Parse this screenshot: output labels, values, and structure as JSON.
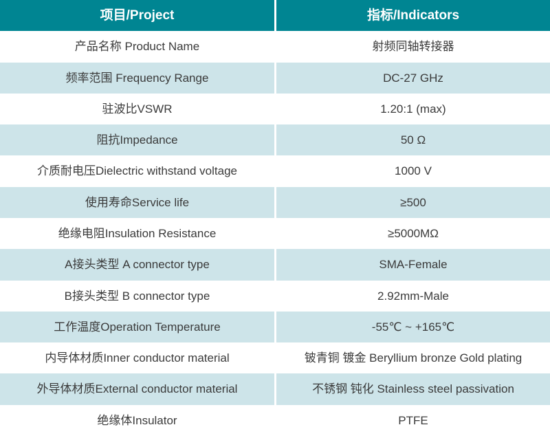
{
  "table": {
    "header": {
      "project": "项目/Project",
      "indicators": "指标/Indicators"
    },
    "rows": [
      {
        "project": "产品名称 Product Name",
        "indicator": "射频同轴转接器"
      },
      {
        "project": "频率范围 Frequency Range",
        "indicator": "DC-27 GHz"
      },
      {
        "project": "驻波比VSWR",
        "indicator": "1.20:1 (max)"
      },
      {
        "project": "阻抗Impedance",
        "indicator": "50 Ω"
      },
      {
        "project": "介质耐电压Dielectric withstand voltage",
        "indicator": "1000 V"
      },
      {
        "project": "使用寿命Service life",
        "indicator": "≥500"
      },
      {
        "project": "绝缘电阻Insulation Resistance",
        "indicator": "≥5000MΩ"
      },
      {
        "project": "A接头类型 A connector type",
        "indicator": "SMA-Female"
      },
      {
        "project": "B接头类型 B connector type",
        "indicator": "2.92mm-Male"
      },
      {
        "project": "工作温度Operation Temperature",
        "indicator": "-55℃ ~ +165℃"
      },
      {
        "project": "内导体材质Inner conductor material",
        "indicator": "铍青铜 镀金 Beryllium bronze Gold plating"
      },
      {
        "project": "外导体材质External conductor material",
        "indicator": "不锈钢 钝化 Stainless steel passivation"
      },
      {
        "project": "绝缘体Insulator",
        "indicator": "PTFE"
      }
    ],
    "colors": {
      "header_bg": "#008592",
      "header_text": "#ffffff",
      "row_bg": "#ffffff",
      "row_alt_bg": "#cde4e9",
      "body_text": "#3a3a3a"
    }
  }
}
